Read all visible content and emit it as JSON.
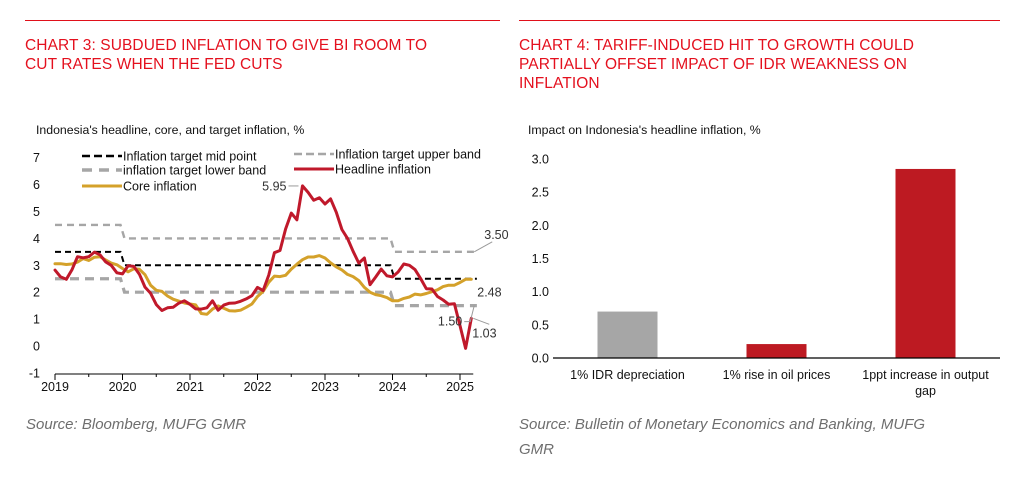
{
  "left": {
    "title_lines": [
      "CHART 3: SUBDUED INFLATION TO GIVE BI ROOM TO",
      "CUT RATES WHEN THE FED CUTS"
    ],
    "subtitle": "Indonesia's headline, core, and target inflation, %",
    "source": "Source: Bloomberg, MUFG GMR"
  },
  "right": {
    "title_lines": [
      "CHART 4: TARIFF-INDUCED HIT TO GROWTH COULD",
      "PARTIALLY OFFSET IMPACT OF IDR WEAKNESS ON",
      "INFLATION"
    ],
    "subtitle": "Impact on Indonesia's headline inflation, %",
    "source_lines": [
      "Source: Bulletin of Monetary Economics and Banking, MUFG",
      "GMR"
    ]
  },
  "colors": {
    "title": "#e4101e",
    "headline": "#c0192b",
    "core": "#d4a12a",
    "target_mid": "#000000",
    "target_band": "#a6a6a6",
    "bar_gray": "#a6a6a6",
    "bar_red": "#bd1a22"
  },
  "chart_data": [
    {
      "type": "line",
      "title": "CHART 3: SUBDUED INFLATION TO GIVE BI ROOM TO CUT RATES WHEN THE FED CUTS",
      "subtitle": "Indonesia's headline, core, and target inflation, %",
      "xlabel": "",
      "ylabel": "",
      "x_start": "2019-01",
      "x_frequency": "monthly",
      "x_ticks": [
        "2019",
        "2020",
        "2021",
        "2022",
        "2023",
        "2024",
        "2025"
      ],
      "xlim": [
        2019,
        2025.25
      ],
      "ylim": [
        -1,
        7
      ],
      "y_ticks": [
        -1,
        0,
        1,
        2,
        3,
        4,
        5,
        6,
        7
      ],
      "grid": false,
      "legend_position": "top",
      "legend": [
        {
          "name": "Inflation target mid point",
          "style": "dashed",
          "color": "#000000"
        },
        {
          "name": "Inflation target upper band",
          "style": "dashed",
          "color": "#a6a6a6"
        },
        {
          "name": "inflation target lower band",
          "style": "dashed-thick",
          "color": "#a6a6a6"
        },
        {
          "name": "Headline inflation",
          "style": "solid",
          "color": "#c0192b"
        },
        {
          "name": "Core inflation",
          "style": "solid",
          "color": "#d4a12a"
        }
      ],
      "series": [
        {
          "name": "Headline inflation",
          "values": [
            2.82,
            2.57,
            2.48,
            2.83,
            3.32,
            3.28,
            3.32,
            3.49,
            3.39,
            3.13,
            3.0,
            2.72,
            2.68,
            2.98,
            2.96,
            2.67,
            2.19,
            1.96,
            1.54,
            1.32,
            1.42,
            1.44,
            1.59,
            1.68,
            1.55,
            1.38,
            1.37,
            1.42,
            1.68,
            1.33,
            1.52,
            1.59,
            1.6,
            1.66,
            1.75,
            1.87,
            2.18,
            2.06,
            2.64,
            3.47,
            3.55,
            4.35,
            4.94,
            4.69,
            5.95,
            5.71,
            5.42,
            5.51,
            5.28,
            5.47,
            4.97,
            4.33,
            4.0,
            3.52,
            3.08,
            3.27,
            2.28,
            2.56,
            2.86,
            2.61,
            2.57,
            2.75,
            3.05,
            3.0,
            2.84,
            2.51,
            2.13,
            2.12,
            1.84,
            1.71,
            1.55,
            1.57,
            0.76,
            -0.09,
            1.03
          ]
        },
        {
          "name": "Core inflation",
          "values": [
            3.06,
            3.06,
            3.03,
            3.05,
            3.12,
            3.25,
            3.18,
            3.3,
            3.32,
            3.2,
            3.08,
            3.02,
            2.88,
            2.76,
            2.87,
            2.85,
            2.65,
            2.26,
            2.07,
            2.03,
            1.86,
            1.74,
            1.67,
            1.6,
            1.56,
            1.53,
            1.21,
            1.18,
            1.37,
            1.49,
            1.4,
            1.31,
            1.3,
            1.33,
            1.44,
            1.56,
            1.84,
            2.03,
            2.37,
            2.6,
            2.58,
            2.63,
            2.86,
            3.04,
            3.21,
            3.31,
            3.31,
            3.36,
            3.27,
            3.09,
            2.94,
            2.83,
            2.66,
            2.58,
            2.43,
            2.18,
            2.0,
            1.91,
            1.87,
            1.8,
            1.68,
            1.68,
            1.77,
            1.82,
            1.93,
            1.9,
            1.95,
            2.02,
            2.09,
            2.21,
            2.26,
            2.26,
            2.36,
            2.48,
            2.48
          ]
        },
        {
          "name": "Inflation target mid point",
          "steps": [
            {
              "from": 2019,
              "to": 2020,
              "value": 3.5
            },
            {
              "from": 2020,
              "to": 2024,
              "value": 3.0
            },
            {
              "from": 2024,
              "to": 2025.25,
              "value": 2.5
            }
          ]
        },
        {
          "name": "Inflation target upper band",
          "steps": [
            {
              "from": 2019,
              "to": 2020,
              "value": 4.5
            },
            {
              "from": 2020,
              "to": 2024,
              "value": 4.0
            },
            {
              "from": 2024,
              "to": 2025.25,
              "value": 3.5
            }
          ]
        },
        {
          "name": "inflation target lower band",
          "steps": [
            {
              "from": 2019,
              "to": 2020,
              "value": 2.5
            },
            {
              "from": 2020,
              "to": 2024,
              "value": 2.0
            },
            {
              "from": 2024,
              "to": 2025.25,
              "value": 1.5
            }
          ]
        }
      ],
      "annotations": [
        {
          "text": "5.95",
          "series": "Headline inflation",
          "value": 5.95
        },
        {
          "text": "3.50",
          "series": "Inflation target upper band",
          "value": 3.5
        },
        {
          "text": "2.48",
          "series": "Core inflation",
          "value": 2.48
        },
        {
          "text": "1.50",
          "series": "inflation target lower band",
          "value": 1.5
        },
        {
          "text": "1.03",
          "series": "Headline inflation",
          "value": 1.03
        }
      ]
    },
    {
      "type": "bar",
      "title": "CHART 4: TARIFF-INDUCED HIT TO GROWTH COULD PARTIALLY OFFSET IMPACT OF IDR WEAKNESS ON INFLATION",
      "subtitle": "Impact on Indonesia's headline inflation, %",
      "categories": [
        "1% IDR depreciation",
        "1% rise in oil prices",
        "1ppt increase in output gap"
      ],
      "category_label_lines": [
        [
          "1% IDR depreciation"
        ],
        [
          "1% rise in oil prices"
        ],
        [
          "1ppt increase in output",
          "gap"
        ]
      ],
      "values": [
        0.7,
        0.21,
        2.85
      ],
      "bar_colors": [
        "#a6a6a6",
        "#bd1a22",
        "#bd1a22"
      ],
      "xlabel": "",
      "ylabel": "",
      "ylim": [
        0,
        3.0
      ],
      "y_ticks": [
        "0.0",
        "0.5",
        "1.0",
        "1.5",
        "2.0",
        "2.5",
        "3.0"
      ],
      "grid": false
    }
  ]
}
